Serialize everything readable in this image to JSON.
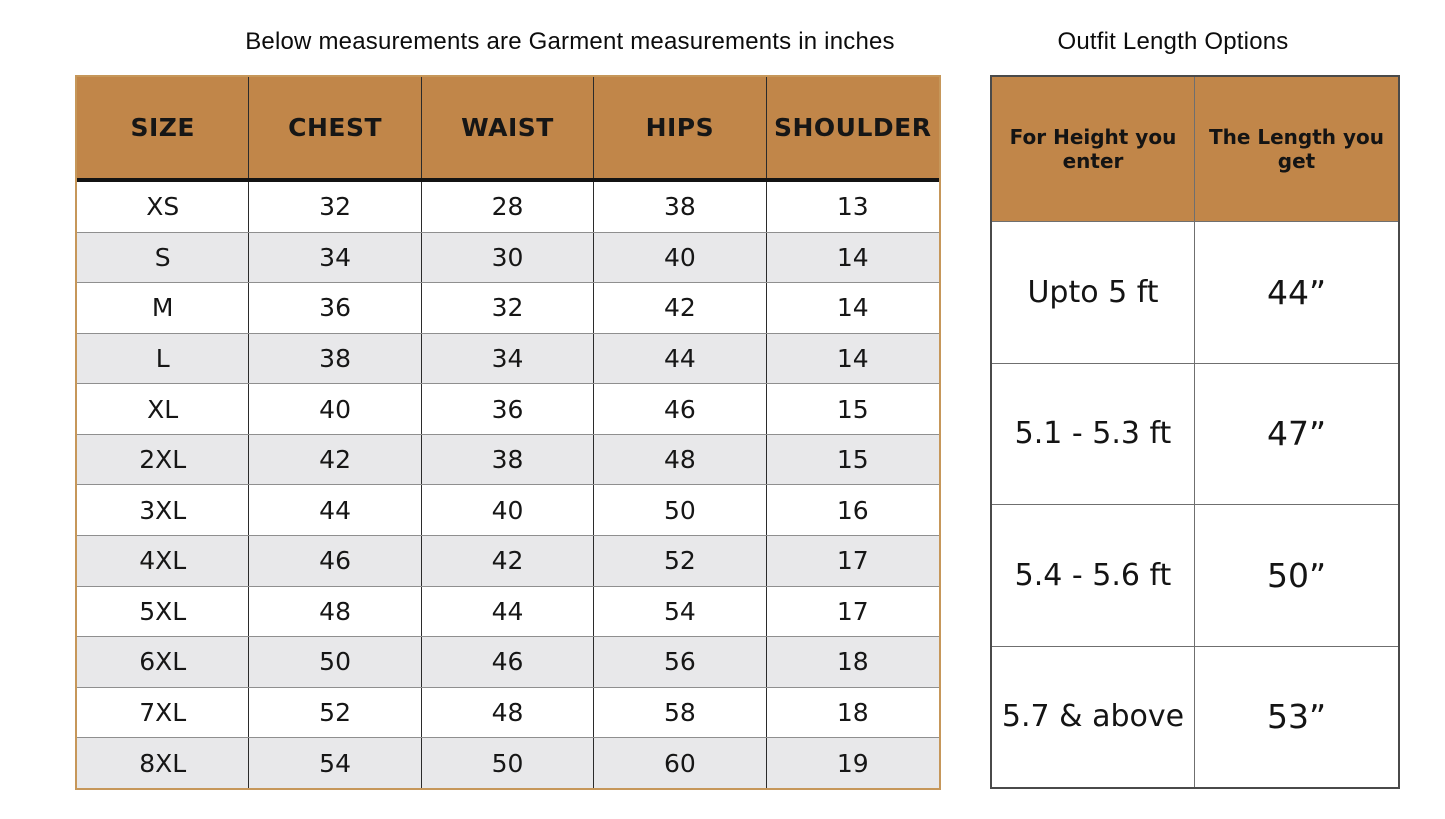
{
  "colors": {
    "header_brown": "#c18649",
    "row_alternate_gray": "#e8e8ea",
    "left_table_border": "#c6975a",
    "right_table_border": "#4a4a4a",
    "text": "#111111"
  },
  "size_chart": {
    "title": "Below measurements are Garment measurements in inches",
    "columns": [
      "SIZE",
      "CHEST",
      "WAIST",
      "HIPS",
      "SHOULDER"
    ],
    "rows": [
      {
        "size": "XS",
        "chest": "32",
        "waist": "28",
        "hips": "38",
        "shoulder": "13"
      },
      {
        "size": "S",
        "chest": "34",
        "waist": "30",
        "hips": "40",
        "shoulder": "14"
      },
      {
        "size": "M",
        "chest": "36",
        "waist": "32",
        "hips": "42",
        "shoulder": "14"
      },
      {
        "size": "L",
        "chest": "38",
        "waist": "34",
        "hips": "44",
        "shoulder": "14"
      },
      {
        "size": "XL",
        "chest": "40",
        "waist": "36",
        "hips": "46",
        "shoulder": "15"
      },
      {
        "size": "2XL",
        "chest": "42",
        "waist": "38",
        "hips": "48",
        "shoulder": "15"
      },
      {
        "size": "3XL",
        "chest": "44",
        "waist": "40",
        "hips": "50",
        "shoulder": "16"
      },
      {
        "size": "4XL",
        "chest": "46",
        "waist": "42",
        "hips": "52",
        "shoulder": "17"
      },
      {
        "size": "5XL",
        "chest": "48",
        "waist": "44",
        "hips": "54",
        "shoulder": "17"
      },
      {
        "size": "6XL",
        "chest": "50",
        "waist": "46",
        "hips": "56",
        "shoulder": "18"
      },
      {
        "size": "7XL",
        "chest": "52",
        "waist": "48",
        "hips": "58",
        "shoulder": "18"
      },
      {
        "size": "8XL",
        "chest": "54",
        "waist": "50",
        "hips": "60",
        "shoulder": "19"
      }
    ]
  },
  "outfit_length": {
    "title": "Outfit Length Options",
    "columns": [
      "For Height you enter",
      "The Length you get"
    ],
    "rows": [
      {
        "height": "Upto 5 ft",
        "length": "44”"
      },
      {
        "height": "5.1 - 5.3 ft",
        "length": "47”"
      },
      {
        "height": "5.4 - 5.6 ft",
        "length": "50”"
      },
      {
        "height": "5.7 & above",
        "length": "53”"
      }
    ]
  }
}
